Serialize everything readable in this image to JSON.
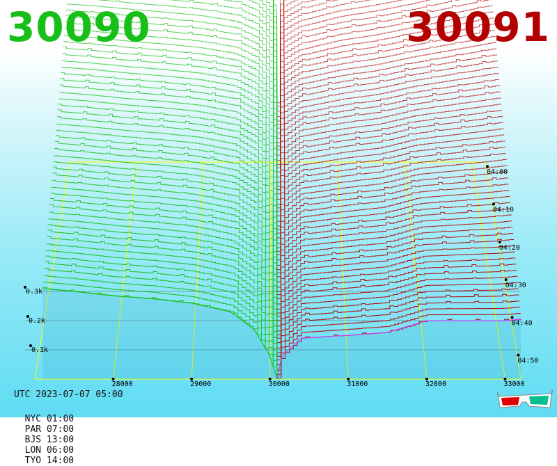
{
  "header": {
    "bid_price": "30090",
    "ask_price": "30091"
  },
  "colors": {
    "bid": "#19bf19",
    "ask": "#b30000",
    "grid": "#ffff00",
    "background_top": "#ffffff",
    "background_bottom": "#5fdcf3"
  },
  "chart_data": {
    "type": "area",
    "title": "",
    "x_ticks": [
      "28000",
      "29000",
      "30000",
      "31000",
      "32000",
      "33000"
    ],
    "xlim": [
      27000,
      33200
    ],
    "z_ticks": [
      "0.1k",
      "0.2k",
      "0.3k"
    ],
    "zlim": [
      0,
      1000
    ],
    "time_ticks": [
      "04:00",
      "04:10",
      "04:20",
      "04:30",
      "04:40",
      "04:50"
    ],
    "time_range": [
      "03:54",
      "04:59"
    ],
    "mid_price": 30090.5,
    "series": [
      {
        "name": "30090",
        "side": "bid",
        "color": "#19bf19",
        "x": [
          27100,
          27500,
          28000,
          28500,
          29000,
          29500,
          29800,
          30000,
          30090
        ],
        "depth_newest": [
          310,
          300,
          285,
          275,
          260,
          230,
          170,
          80,
          0
        ],
        "depth_oldest": [
          930,
          925,
          915,
          905,
          895,
          880,
          860,
          810,
          200
        ]
      },
      {
        "name": "30091",
        "side": "ask",
        "color": "#b30000",
        "x": [
          30091,
          30150,
          30400,
          31000,
          31500,
          32000,
          32500,
          33000,
          33200
        ],
        "depth_newest": [
          0,
          80,
          140,
          150,
          160,
          200,
          200,
          200,
          205
        ],
        "depth_oldest": [
          200,
          610,
          640,
          680,
          700,
          720,
          750,
          780,
          790
        ]
      }
    ]
  },
  "footer": {
    "utc": "UTC 2023-07-07 05:00",
    "zones": [
      {
        "name": "NYC",
        "time": "01:00"
      },
      {
        "name": "PAR",
        "time": "07:00"
      },
      {
        "name": "BJS",
        "time": "13:00"
      },
      {
        "name": "LON",
        "time": "06:00"
      },
      {
        "name": "TYO",
        "time": "14:00"
      }
    ]
  },
  "icons": {
    "glasses": "3d-glasses-icon"
  }
}
